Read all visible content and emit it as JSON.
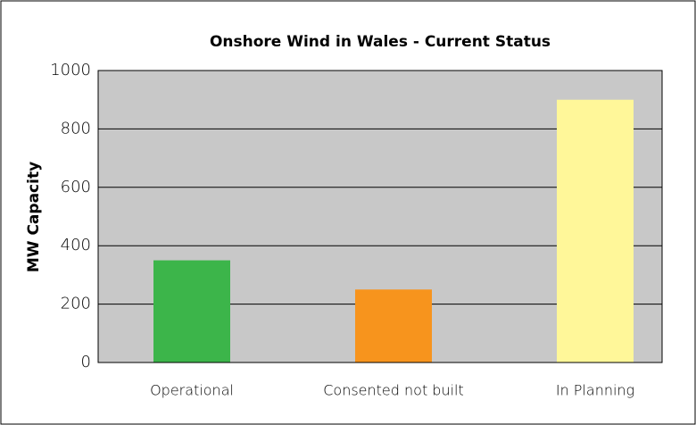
{
  "chart_data": {
    "type": "bar",
    "title": "Onshore Wind in Wales - Current Status",
    "y_label": "MW Capacity",
    "categories": [
      "Operational",
      "Consented not built",
      "In Planning"
    ],
    "values": [
      350,
      250,
      900
    ],
    "colors": [
      "#3cb54a",
      "#f7941d",
      "#fff799"
    ],
    "ylim": [
      0,
      1000
    ],
    "yticks": [
      0,
      200,
      400,
      600,
      800,
      1000
    ],
    "grid": true
  }
}
